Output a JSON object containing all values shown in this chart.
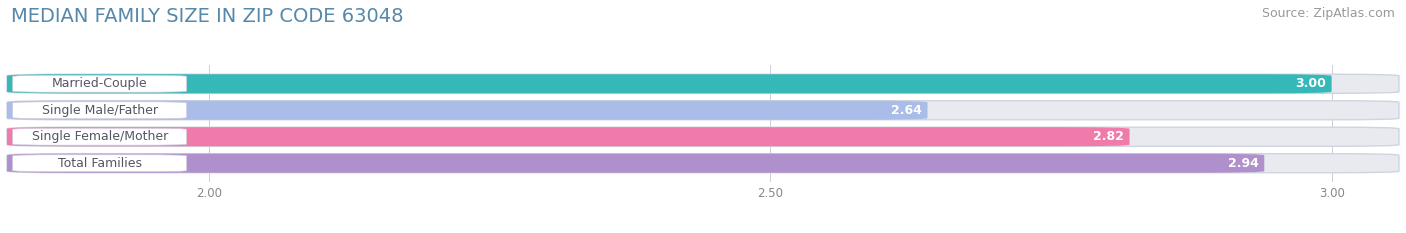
{
  "title": "MEDIAN FAMILY SIZE IN ZIP CODE 63048",
  "source": "Source: ZipAtlas.com",
  "categories": [
    "Married-Couple",
    "Single Male/Father",
    "Single Female/Mother",
    "Total Families"
  ],
  "values": [
    3.0,
    2.64,
    2.82,
    2.94
  ],
  "bar_colors": [
    "#35b8b8",
    "#aabce8",
    "#f07aaa",
    "#b090cc"
  ],
  "background_color": "#ffffff",
  "bar_bg_color": "#e8eaf0",
  "title_color": "#5588aa",
  "source_color": "#999999",
  "label_bg_color": "#ffffff",
  "label_text_color": "#555566",
  "value_text_color": "#ffffff",
  "title_fontsize": 14,
  "source_fontsize": 9,
  "bar_label_fontsize": 9,
  "value_fontsize": 9,
  "xlim_min": 1.82,
  "xlim_max": 3.06,
  "xticks": [
    2.0,
    2.5,
    3.0
  ],
  "bar_height": 0.72,
  "bar_gap": 0.28
}
